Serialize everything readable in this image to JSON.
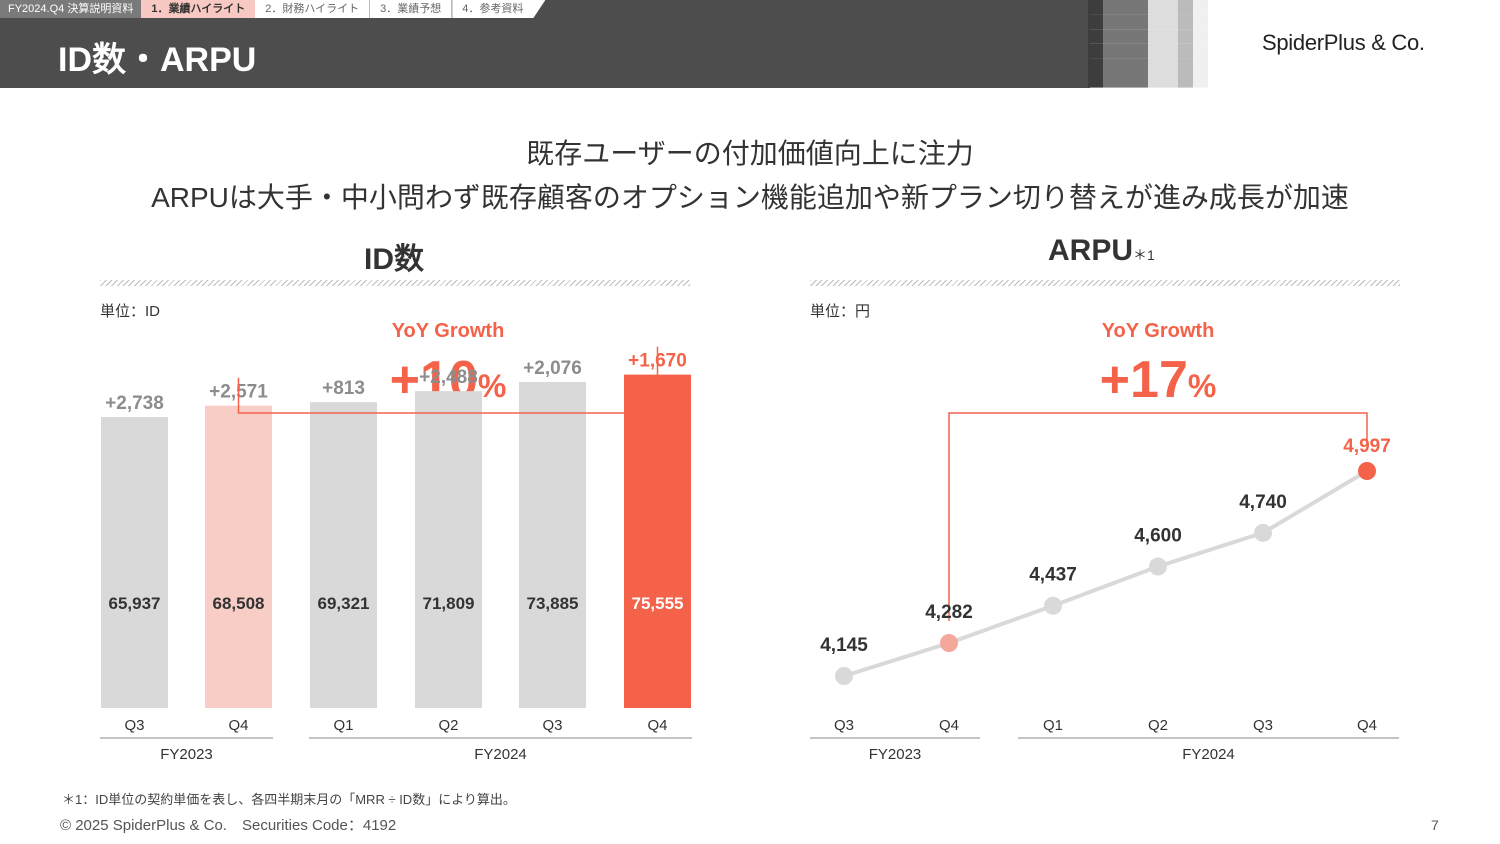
{
  "header": {
    "doc_label": "FY2024.Q4 決算説明資料",
    "tabs": [
      {
        "label": "1．業績ハイライト",
        "active": true
      },
      {
        "label": "2．財務ハイライト",
        "active": false
      },
      {
        "label": "3．業績予想",
        "active": false
      },
      {
        "label": "4．参考資料",
        "active": false
      }
    ],
    "title": "ID数・ARPU",
    "brand": "SpiderPlus & Co."
  },
  "subtitle": {
    "line1": "既存ユーザーの付加価値向上に注力",
    "line2": "ARPUは大手・中小問わず既存顧客のオプション機能追加や新プラン切り替えが進み成長が加速"
  },
  "chart_data": [
    {
      "type": "bar",
      "title": "ID数",
      "unit": "単位：ID",
      "yoy_label": "YoY Growth",
      "yoy_value": "+10",
      "yoy_pct": "%",
      "categories": [
        "Q3",
        "Q4",
        "Q1",
        "Q2",
        "Q3",
        "Q4"
      ],
      "groups": [
        {
          "label": "FY2023",
          "from": 0,
          "to": 1
        },
        {
          "label": "FY2024",
          "from": 2,
          "to": 5
        }
      ],
      "values": [
        65937,
        68508,
        69321,
        71809,
        73885,
        75555
      ],
      "value_labels": [
        "65,937",
        "68,508",
        "69,321",
        "71,809",
        "73,885",
        "75,555"
      ],
      "increments": [
        "+2,738",
        "+2,571",
        "+813",
        "+2,488",
        "+2,076",
        "+1,670"
      ],
      "ylim": [
        0,
        80000
      ],
      "colors": {
        "base": "#d9d9d9",
        "prior": "#f8cdc6",
        "current": "#f4624a",
        "increment": "#8c8c8c"
      }
    },
    {
      "type": "line",
      "title": "ARPU",
      "title_note": "＊1",
      "unit": "単位：円",
      "yoy_label": "YoY Growth",
      "yoy_value": "+17",
      "yoy_pct": "%",
      "categories": [
        "Q3",
        "Q4",
        "Q1",
        "Q2",
        "Q3",
        "Q4"
      ],
      "groups": [
        {
          "label": "FY2023",
          "from": 0,
          "to": 1
        },
        {
          "label": "FY2024",
          "from": 2,
          "to": 5
        }
      ],
      "values": [
        4145,
        4282,
        4437,
        4600,
        4740,
        4997
      ],
      "value_labels": [
        "4,145",
        "4,282",
        "4,437",
        "4,600",
        "4,740",
        "4,997"
      ],
      "ylim": [
        3980,
        5150
      ],
      "colors": {
        "line": "#d9d9d9",
        "prior": "#f4a89b",
        "current": "#f4624a"
      }
    }
  ],
  "footer": {
    "footnote": "＊1：ID単位の契約単価を表し、各四半期末月の「MRR ÷ ID数」により算出。",
    "copyright": "© 2025 SpiderPlus & Co.　Securities Code：4192",
    "page": "7"
  }
}
